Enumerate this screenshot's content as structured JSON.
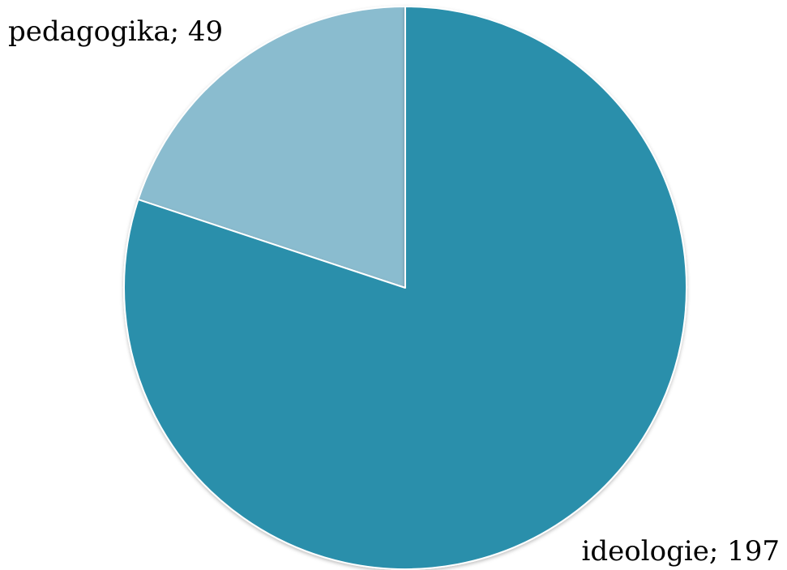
{
  "chart_data": {
    "type": "pie",
    "title": "",
    "start": "top",
    "direction": "counterclockwise",
    "slices": [
      {
        "category": "ideologie",
        "value": 197,
        "label": "ideologie; 197",
        "color": "#2a8fab"
      },
      {
        "category": "pedagogika",
        "value": 49,
        "label": "pedagogika; 49",
        "color": "#8abccf"
      }
    ]
  }
}
